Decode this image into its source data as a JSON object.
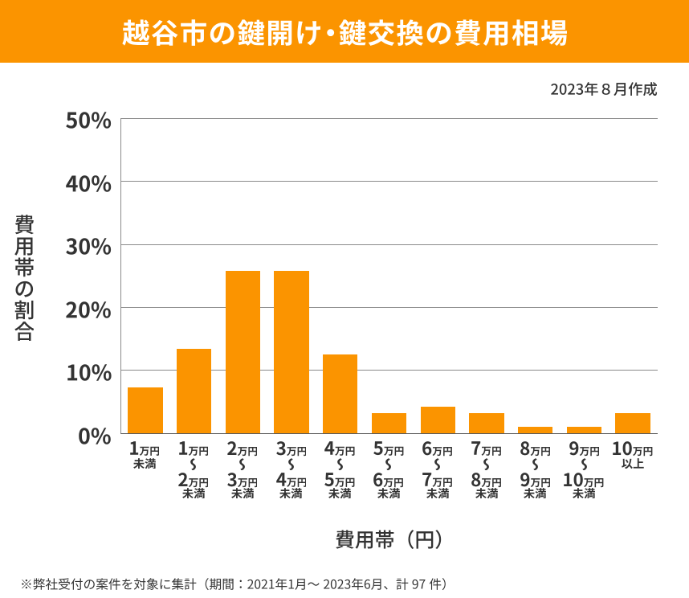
{
  "chart_data": {
    "type": "bar",
    "title": "越谷市の鍵開け・鍵交換の費用相場",
    "created": "2023年8月作成",
    "categories": [
      "1万円未満",
      "1万円〜2万円未満",
      "2万円〜3万円未満",
      "3万円〜4万円未満",
      "4万円〜5万円未満",
      "5万円〜6万円未満",
      "6万円〜7万円未満",
      "7万円〜8万円未満",
      "8万円〜9万円未満",
      "9万円〜10万円未満",
      "10万円以上"
    ],
    "values": [
      7.2,
      13.4,
      25.8,
      25.8,
      12.4,
      3.1,
      4.1,
      3.1,
      1.0,
      1.0,
      3.1
    ],
    "value_unit": "%",
    "xlabel": "費用帯（円）",
    "ylabel": "費用帯の割合",
    "ylim": [
      0,
      50
    ],
    "yticks": [
      "50%",
      "40%",
      "30%",
      "20%",
      "10%",
      "0%"
    ],
    "ytick_step": "10%",
    "grid": true,
    "legend": false,
    "bar_color": "#FB9400",
    "footnote": "※弊社受付の案件を対象に集計（期間：2021年1月～ 2023年6月、計 97 件）"
  },
  "colors": {
    "accent": "#FB9400",
    "banner_text": "#ffffff",
    "text": "#333333",
    "grid": "#8a8a8a",
    "axis": "#595959",
    "background": "#ffffff"
  }
}
